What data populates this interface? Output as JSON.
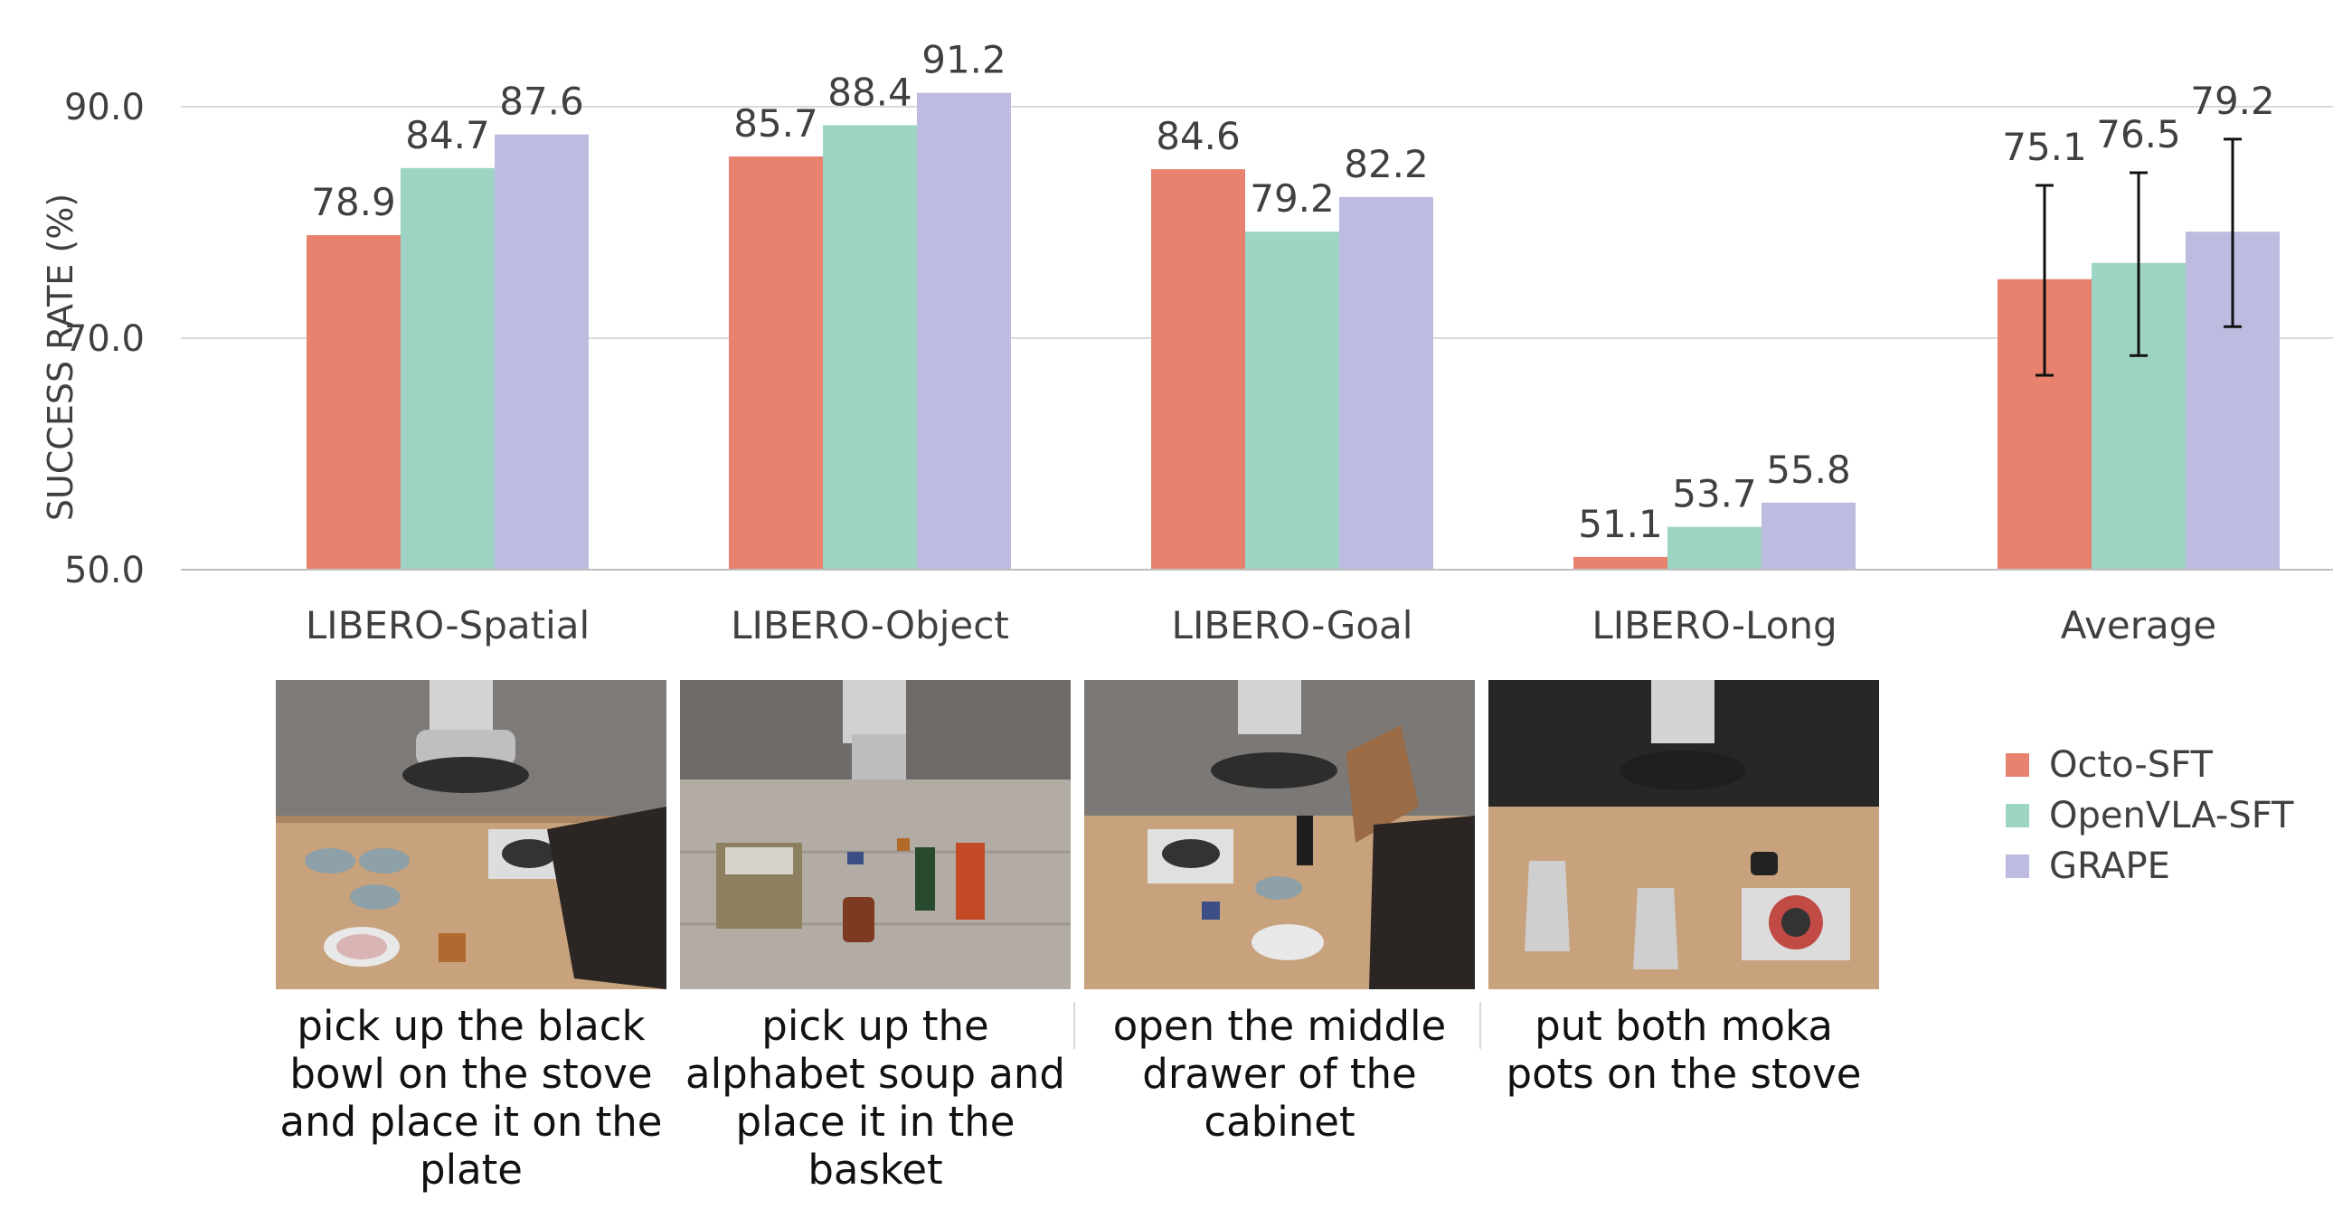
{
  "chart_data": {
    "type": "bar",
    "ylabel": "SUCCESS RATE (%)",
    "ylim": [
      50,
      90
    ],
    "yticks": [
      "50.0",
      "70.0",
      "90.0"
    ],
    "grid": true,
    "legend_position": "right",
    "categories": [
      "LIBERO-Spatial",
      "LIBERO-Object",
      "LIBERO-Goal",
      "LIBERO-Long",
      "Average"
    ],
    "series": [
      {
        "name": "Octo-SFT",
        "color": "#E8826F",
        "values": [
          78.9,
          85.7,
          84.6,
          51.1,
          75.1
        ],
        "labels": [
          "78.9",
          "85.7",
          "84.6",
          "51.1",
          "75.1"
        ]
      },
      {
        "name": "OpenVLA-SFT",
        "color": "#9DD4C3",
        "values": [
          84.7,
          88.4,
          79.2,
          53.7,
          76.5
        ],
        "labels": [
          "84.7",
          "88.4",
          "79.2",
          "53.7",
          "76.5"
        ]
      },
      {
        "name": "GRAPE",
        "color": "#BDBCE0",
        "values": [
          87.6,
          91.2,
          82.2,
          55.8,
          79.2
        ],
        "labels": [
          "87.6",
          "91.2",
          "82.2",
          "55.8",
          "79.2"
        ]
      }
    ],
    "error_bars": {
      "category": "Average",
      "ranges": [
        [
          66.8,
          83.2
        ],
        [
          68.5,
          84.3
        ],
        [
          71.0,
          87.2
        ]
      ]
    }
  },
  "tasks": [
    {
      "scene": "libero-spatial-scene",
      "caption": "pick up the black bowl on the stove and place it on the plate"
    },
    {
      "scene": "libero-object-scene",
      "caption": "pick up the alphabet soup and place it in the basket"
    },
    {
      "scene": "libero-goal-scene",
      "caption": "open the middle drawer of the cabinet"
    },
    {
      "scene": "libero-long-scene",
      "caption": "put both moka pots on the stove"
    }
  ]
}
